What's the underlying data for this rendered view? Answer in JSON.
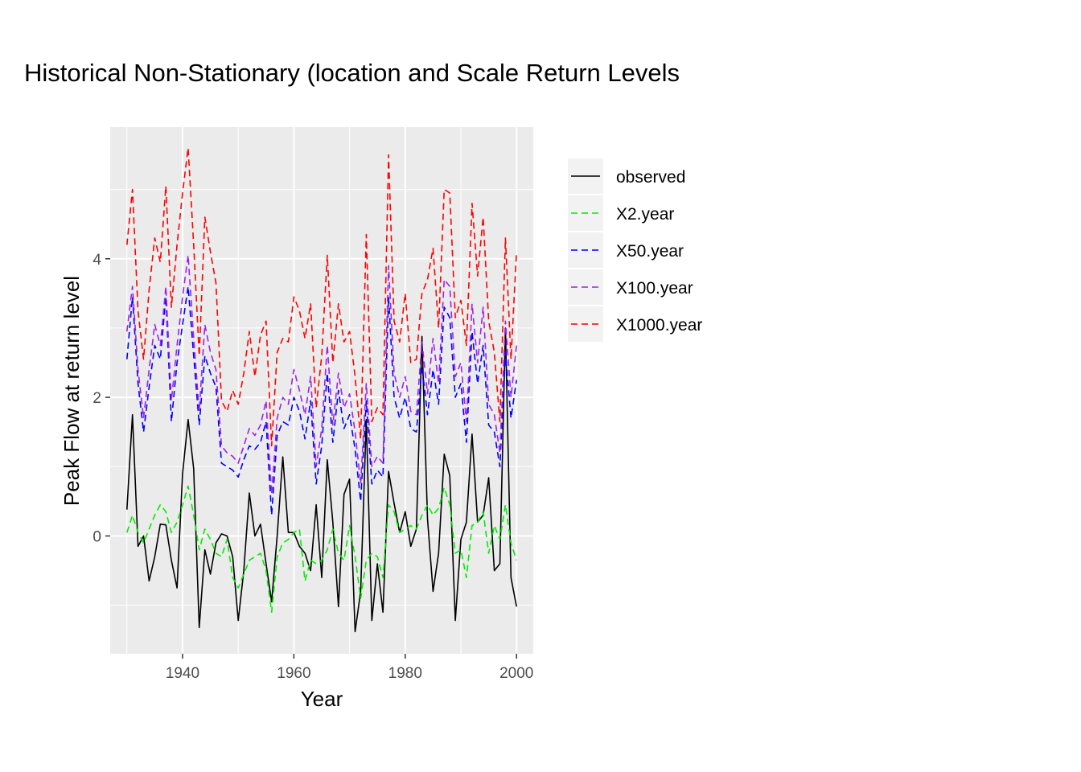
{
  "chart_data": {
    "type": "line",
    "title": "Historical Non-Stationary (location and Scale Return Levels",
    "xlabel": "Year",
    "ylabel": "Peak Flow at return level",
    "xlim": [
      1927,
      2003
    ],
    "ylim": [
      -1.7,
      5.9
    ],
    "x_ticks": [
      1940,
      1960,
      1980,
      2000
    ],
    "y_ticks": [
      0,
      2,
      4
    ],
    "grid": true,
    "legend_position": "right",
    "x": [
      1930,
      1931,
      1932,
      1933,
      1934,
      1935,
      1936,
      1937,
      1938,
      1939,
      1940,
      1941,
      1942,
      1943,
      1944,
      1945,
      1946,
      1947,
      1948,
      1949,
      1950,
      1951,
      1952,
      1953,
      1954,
      1955,
      1956,
      1957,
      1958,
      1959,
      1960,
      1961,
      1962,
      1963,
      1964,
      1965,
      1966,
      1967,
      1968,
      1969,
      1970,
      1971,
      1972,
      1973,
      1974,
      1975,
      1976,
      1977,
      1978,
      1979,
      1980,
      1981,
      1982,
      1983,
      1984,
      1985,
      1986,
      1987,
      1988,
      1989,
      1990,
      1991,
      1992,
      1993,
      1994,
      1995,
      1996,
      1997,
      1998,
      1999,
      2000
    ],
    "series": [
      {
        "name": "observed",
        "color": "#000000",
        "dash": "solid",
        "values": [
          0.38,
          1.75,
          -0.15,
          0.0,
          -0.65,
          -0.3,
          0.17,
          0.16,
          -0.35,
          -0.75,
          0.9,
          1.68,
          0.97,
          -1.32,
          -0.2,
          -0.55,
          -0.1,
          0.03,
          0.0,
          -0.3,
          -1.22,
          -0.5,
          0.62,
          0.0,
          0.17,
          -0.4,
          -0.95,
          0.0,
          1.14,
          0.05,
          0.05,
          -0.15,
          -0.25,
          -0.5,
          0.45,
          -0.6,
          1.1,
          0.2,
          -1.02,
          0.6,
          0.82,
          -1.38,
          -0.8,
          1.68,
          -1.22,
          -0.4,
          -1.1,
          0.93,
          0.47,
          0.05,
          0.35,
          -0.15,
          0.1,
          2.88,
          0.25,
          -0.8,
          -0.25,
          1.18,
          0.87,
          -1.22,
          -0.05,
          0.2,
          1.47,
          0.2,
          0.3,
          0.84,
          -0.5,
          -0.4,
          3.0,
          -0.6,
          -1.02
        ]
      },
      {
        "name": "X2.year",
        "color": "#00ee00",
        "dash": "dashed",
        "values": [
          0.05,
          0.3,
          0.05,
          -0.1,
          0.1,
          0.3,
          0.45,
          0.35,
          0.05,
          0.2,
          0.45,
          0.72,
          0.3,
          -0.2,
          0.1,
          -0.05,
          -0.25,
          -0.3,
          -0.05,
          -0.6,
          -0.75,
          -0.55,
          -0.35,
          -0.3,
          -0.25,
          -0.5,
          -1.1,
          -0.3,
          -0.1,
          -0.05,
          0.05,
          0.1,
          -0.65,
          -0.35,
          -0.4,
          -0.35,
          -0.2,
          0.1,
          -0.25,
          -0.35,
          0.15,
          -0.3,
          -0.9,
          -0.35,
          -0.25,
          -0.3,
          -0.6,
          0.45,
          0.35,
          0.05,
          0.1,
          0.15,
          0.1,
          0.3,
          0.45,
          0.3,
          0.4,
          0.7,
          0.45,
          -0.25,
          -0.2,
          -0.6,
          0.15,
          0.2,
          0.35,
          -0.25,
          0.15,
          -0.05,
          0.45,
          -0.1,
          -0.35
        ]
      },
      {
        "name": "X50.year",
        "color": "#0000ff",
        "dash": "dashed",
        "values": [
          2.55,
          3.45,
          2.2,
          1.5,
          2.15,
          2.75,
          2.55,
          3.45,
          1.65,
          2.5,
          3.05,
          3.6,
          2.6,
          1.6,
          2.6,
          2.35,
          2.15,
          1.05,
          1.0,
          0.95,
          0.85,
          1.1,
          1.3,
          1.25,
          1.35,
          1.65,
          0.3,
          1.45,
          1.65,
          1.6,
          2.0,
          1.8,
          1.4,
          1.95,
          0.75,
          1.3,
          2.35,
          1.35,
          2.1,
          1.55,
          1.75,
          1.25,
          0.5,
          1.95,
          0.75,
          0.95,
          0.85,
          3.45,
          2.0,
          1.7,
          2.0,
          1.55,
          1.5,
          2.45,
          1.75,
          2.4,
          1.9,
          3.3,
          3.15,
          2.0,
          2.2,
          1.35,
          2.95,
          2.2,
          2.75,
          1.6,
          1.5,
          1.0,
          2.65,
          1.7,
          2.25
        ]
      },
      {
        "name": "X100.year",
        "color": "#a020f0",
        "dash": "dashed",
        "values": [
          2.95,
          3.6,
          2.4,
          1.7,
          2.4,
          3.05,
          2.75,
          3.6,
          1.95,
          2.75,
          3.45,
          4.05,
          2.85,
          1.8,
          3.05,
          2.65,
          2.4,
          1.3,
          1.2,
          1.15,
          1.05,
          1.3,
          1.55,
          1.45,
          1.6,
          1.95,
          0.6,
          1.7,
          2.0,
          1.9,
          2.4,
          2.1,
          1.75,
          2.3,
          1.0,
          1.55,
          2.75,
          1.6,
          2.35,
          1.85,
          2.05,
          1.5,
          0.75,
          2.2,
          1.0,
          1.15,
          1.05,
          3.9,
          2.35,
          2.0,
          2.3,
          1.8,
          1.75,
          2.8,
          2.05,
          2.85,
          2.2,
          3.7,
          3.6,
          2.3,
          2.5,
          1.65,
          3.35,
          2.5,
          3.3,
          1.9,
          1.75,
          1.2,
          3.1,
          2.0,
          2.75
        ]
      },
      {
        "name": "X1000.year",
        "color": "#ff0000",
        "dash": "dashed",
        "values": [
          4.2,
          5.0,
          3.25,
          2.55,
          3.55,
          4.3,
          3.95,
          5.05,
          3.3,
          4.2,
          4.95,
          5.6,
          4.2,
          2.6,
          4.6,
          4.1,
          3.65,
          1.95,
          1.8,
          2.1,
          1.9,
          2.35,
          2.95,
          2.3,
          2.9,
          3.1,
          1.3,
          2.65,
          2.85,
          2.8,
          3.45,
          3.25,
          2.85,
          3.35,
          1.85,
          2.6,
          4.05,
          2.5,
          3.35,
          2.8,
          2.95,
          2.3,
          1.4,
          4.35,
          1.65,
          1.85,
          1.75,
          5.5,
          3.1,
          2.8,
          3.5,
          2.5,
          2.55,
          3.5,
          3.7,
          4.15,
          3.0,
          5.0,
          4.95,
          3.15,
          3.4,
          2.75,
          4.8,
          3.75,
          4.6,
          3.1,
          2.65,
          1.65,
          4.3,
          2.55,
          4.1
        ]
      }
    ]
  }
}
